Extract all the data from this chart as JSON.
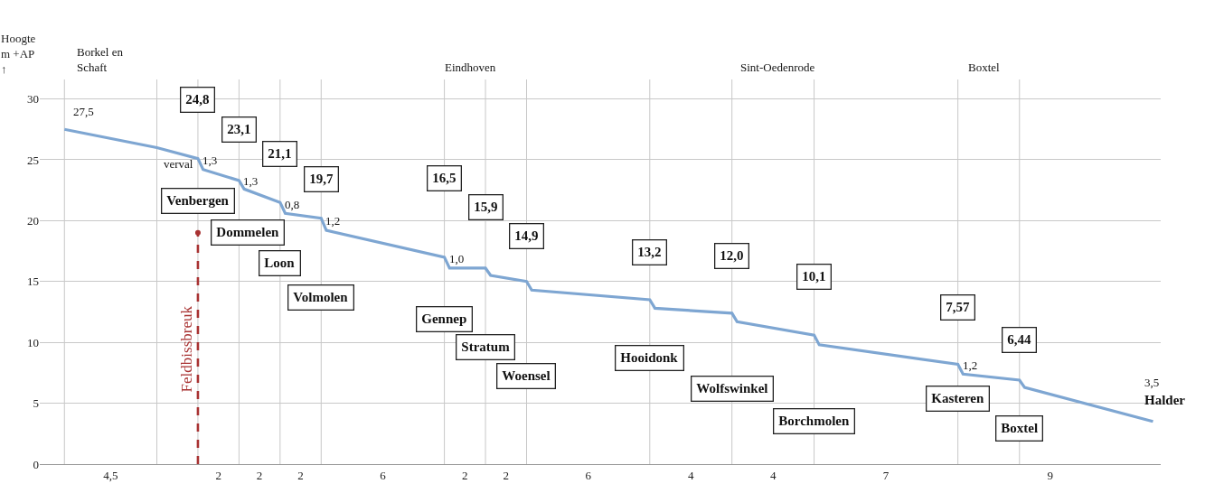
{
  "chart_data": {
    "type": "line",
    "ylabel": "Hoogte\nm +AP\n↑",
    "ylim": [
      0,
      31.6
    ],
    "yticks": [
      0,
      5,
      10,
      15,
      20,
      25,
      30
    ],
    "categories": [
      null,
      null,
      null,
      null,
      null,
      null,
      null,
      null,
      null,
      null,
      null,
      null,
      null,
      "4,5",
      null,
      null,
      null,
      null,
      null,
      null,
      null,
      null,
      null,
      null,
      null,
      null,
      null,
      null,
      null,
      null,
      null,
      null,
      null,
      null,
      "2",
      null,
      null,
      null,
      null,
      null,
      null,
      null,
      "2",
      null,
      null,
      null,
      null,
      null,
      null,
      null,
      "2",
      null,
      null,
      null,
      null,
      null,
      null,
      null,
      null,
      null,
      null,
      null,
      null,
      null,
      null,
      null,
      "6",
      null,
      null,
      null,
      null,
      null,
      null,
      null,
      null,
      null,
      null,
      null,
      null,
      null,
      null,
      null,
      "2",
      null,
      null,
      null,
      null,
      null,
      null,
      null,
      "2",
      null,
      null,
      null,
      null,
      null,
      null,
      null,
      null,
      null,
      null,
      null,
      null,
      null,
      null,
      null,
      "6",
      null,
      null,
      null,
      null,
      null,
      null,
      null,
      null,
      null,
      null,
      null,
      null,
      null,
      null,
      null,
      null,
      null,
      null,
      null,
      "4",
      null,
      null,
      null,
      null,
      null,
      null,
      null,
      null,
      null,
      null,
      null,
      null,
      null,
      null,
      null,
      "4",
      null,
      null,
      null,
      null,
      null,
      null,
      null,
      null,
      null,
      null,
      null,
      null,
      null,
      null,
      null,
      null,
      null,
      null,
      null,
      null,
      null,
      "7",
      null,
      null,
      null,
      null,
      null,
      null,
      null,
      null,
      null,
      null,
      null,
      null,
      null,
      null,
      null,
      null,
      null,
      null,
      null,
      null,
      null,
      null,
      null,
      null,
      null,
      null,
      null,
      null,
      null,
      null,
      null,
      "9",
      null,
      null,
      null,
      null,
      null,
      null,
      null,
      null,
      null,
      null,
      null,
      null,
      null,
      null,
      null,
      null,
      null,
      null,
      null,
      null,
      null
    ],
    "grid": true,
    "legend": false,
    "marker": "none",
    "series": [
      {
        "color": "#7ea6d2",
        "line_style": "solid",
        "values": [
          null,
          null,
          null,
          null,
          27.5,
          null,
          null,
          null,
          null,
          null,
          null,
          null,
          null,
          null,
          null,
          null,
          null,
          null,
          null,
          null,
          null,
          null,
          26.0,
          null,
          null,
          null,
          null,
          null,
          null,
          null,
          25.1,
          24.2,
          null,
          null,
          null,
          null,
          null,
          null,
          23.3,
          22.6,
          null,
          null,
          null,
          null,
          null,
          null,
          21.5,
          20.6,
          null,
          null,
          null,
          null,
          null,
          null,
          20.2,
          19.2,
          null,
          null,
          null,
          null,
          null,
          null,
          null,
          null,
          null,
          null,
          null,
          null,
          null,
          null,
          null,
          null,
          null,
          null,
          null,
          null,
          null,
          null,
          17.0,
          16.1,
          null,
          null,
          null,
          null,
          null,
          null,
          16.1,
          15.5,
          null,
          null,
          null,
          null,
          null,
          null,
          15.0,
          14.3,
          null,
          null,
          null,
          null,
          null,
          null,
          null,
          null,
          null,
          null,
          null,
          null,
          null,
          null,
          null,
          null,
          null,
          null,
          null,
          null,
          null,
          null,
          13.5,
          12.8,
          null,
          null,
          null,
          null,
          null,
          null,
          null,
          null,
          null,
          null,
          null,
          null,
          null,
          null,
          12.4,
          11.7,
          null,
          null,
          null,
          null,
          null,
          null,
          null,
          null,
          null,
          null,
          null,
          null,
          null,
          null,
          10.6,
          9.8,
          null,
          null,
          null,
          null,
          null,
          null,
          null,
          null,
          null,
          null,
          null,
          null,
          null,
          null,
          null,
          null,
          null,
          null,
          null,
          null,
          null,
          null,
          null,
          null,
          null,
          null,
          8.2,
          7.4,
          null,
          null,
          null,
          null,
          null,
          null,
          null,
          null,
          null,
          null,
          6.9,
          6.3,
          null,
          null,
          null,
          null,
          null,
          null,
          null,
          null,
          null,
          null,
          null,
          null,
          null,
          null,
          null,
          null,
          null,
          null,
          null,
          null,
          null,
          null,
          null,
          null,
          3.5,
          null
        ]
      },
      {
        "type": "lollipop",
        "name": "Feldbissbreuk",
        "color": "#a83232",
        "line_style": "dashed",
        "values": [
          null,
          null,
          null,
          null,
          null,
          null,
          null,
          null,
          null,
          null,
          null,
          null,
          null,
          null,
          null,
          null,
          null,
          null,
          null,
          null,
          null,
          null,
          null,
          null,
          null,
          null,
          null,
          null,
          null,
          null,
          19,
          null,
          null,
          null,
          null,
          null,
          null,
          null,
          null,
          null,
          null,
          null,
          null,
          null,
          null,
          null,
          null,
          null,
          null,
          null,
          null,
          null,
          null,
          null,
          null,
          null,
          null,
          null,
          null,
          null,
          null,
          null,
          null,
          null,
          null,
          null,
          null,
          null,
          null,
          null,
          null,
          null,
          null,
          null,
          null,
          null,
          null,
          null,
          null,
          null,
          null,
          null,
          null,
          null,
          null,
          null,
          null,
          null,
          null,
          null,
          null,
          null,
          null,
          null,
          null,
          null,
          null,
          null,
          null,
          null,
          null,
          null,
          null,
          null,
          null,
          null,
          null,
          null,
          null,
          null,
          null,
          null,
          null,
          null,
          null,
          null,
          null,
          null,
          null,
          null,
          null,
          null,
          null,
          null,
          null,
          null,
          null,
          null,
          null,
          null,
          null,
          null,
          null,
          null,
          null,
          null,
          null,
          null,
          null,
          null,
          null,
          null,
          null,
          null,
          null,
          null,
          null,
          null,
          null,
          null,
          null,
          null,
          null,
          null,
          null,
          null,
          null,
          null,
          null,
          null,
          null,
          null,
          null,
          null,
          null,
          null,
          null,
          null,
          null,
          null,
          null,
          null,
          null,
          null,
          null,
          null,
          null,
          null,
          null,
          null,
          null,
          null,
          null,
          null,
          null,
          null,
          null,
          null,
          null,
          null,
          null,
          null,
          null,
          null,
          null,
          null,
          null,
          null,
          null,
          null,
          null,
          null,
          null,
          null,
          null,
          null,
          null,
          null,
          null,
          null,
          null,
          null,
          null,
          null,
          null,
          null,
          null,
          null
        ]
      }
    ],
    "annotations": [
      "24,8",
      "23,1",
      "21,1",
      "19,7",
      "16,5",
      "15,9",
      "14,9",
      "13,2",
      "12,0",
      "10,1",
      "7,57",
      "6,44",
      "Venbergen",
      "Dommelen",
      "Loon",
      "Volmolen",
      "Gennep",
      "Stratum",
      "Woensel",
      "Hooidonk",
      "Wolfswinkel",
      "Borchmolen",
      "Kasteren",
      "Boxtel",
      "27,5",
      "verval",
      "1,3",
      "1,3",
      "0,8",
      "1,2",
      "1,0",
      "1,2",
      "3,5",
      "Halder",
      "Borkel en\nSchaft",
      "Eindhoven",
      "Sint-Oedenrode",
      "Boxtel"
    ]
  }
}
